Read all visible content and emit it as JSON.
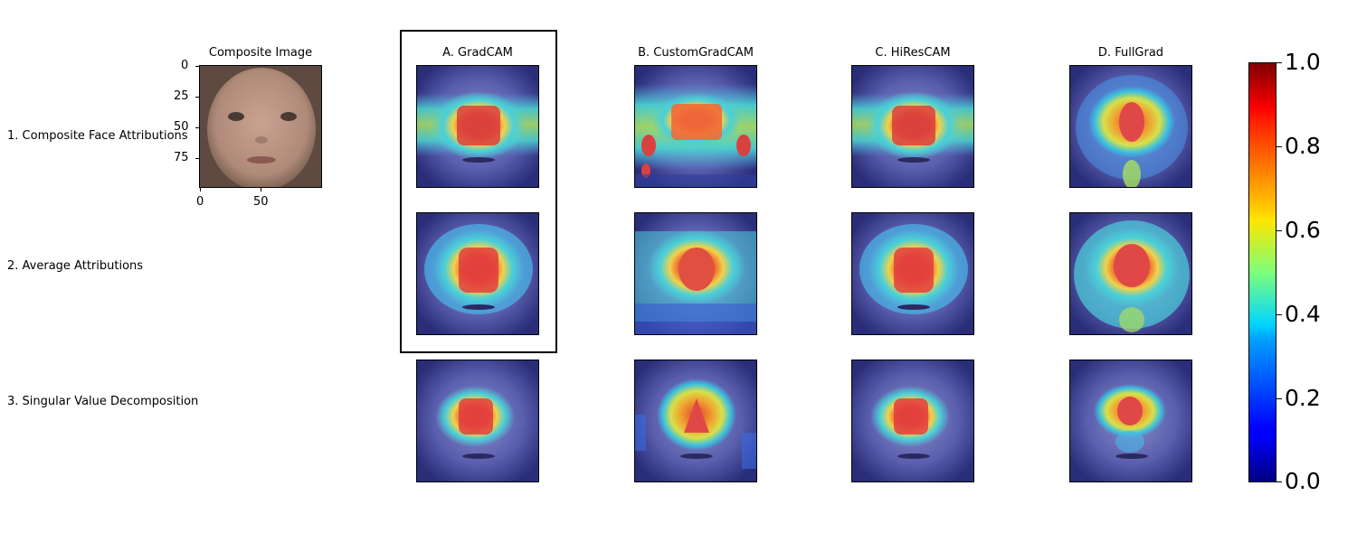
{
  "column_titles": {
    "composite": "Composite Image",
    "gradcam": "A. GradCAM",
    "customgradcam": "B. CustomGradCAM",
    "hirescam": "C. HiResCAM",
    "fullgrad": "D. FullGrad"
  },
  "row_labels": {
    "row1": "1. Composite Face Attributions",
    "row2": "2. Average Attributions",
    "row3": "3. Singular Value Decomposition"
  },
  "composite_axes": {
    "y_ticks": [
      "0",
      "25",
      "50",
      "75"
    ],
    "x_ticks": [
      "0",
      "50"
    ]
  },
  "colorbar": {
    "colormap": "jet",
    "ticks": [
      "1.0",
      "0.8",
      "0.6",
      "0.4",
      "0.2",
      "0.0"
    ],
    "range": [
      0.0,
      1.0
    ]
  },
  "highlighted_column": "A. GradCAM"
}
